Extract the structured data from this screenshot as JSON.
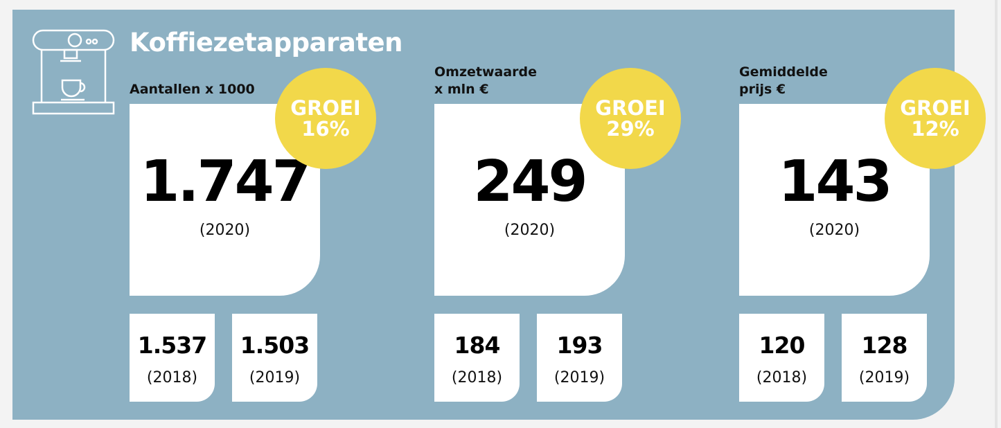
{
  "title": "Koffiezetapparaten",
  "panels": [
    {
      "label": [
        "Aantallen x 1000"
      ],
      "badge": {
        "label": "GROEI",
        "value": "16%"
      },
      "main": {
        "value": "1.747",
        "year": "(2020)"
      },
      "history": [
        {
          "value": "1.537",
          "year": "(2018)"
        },
        {
          "value": "1.503",
          "year": "(2019)"
        }
      ]
    },
    {
      "label": [
        "Omzetwaarde",
        "x mln €"
      ],
      "badge": {
        "label": "GROEI",
        "value": "29%"
      },
      "main": {
        "value": "249",
        "year": "(2020)"
      },
      "history": [
        {
          "value": "184",
          "year": "(2018)"
        },
        {
          "value": "193",
          "year": "(2019)"
        }
      ]
    },
    {
      "label": [
        "Gemiddelde",
        "prijs €"
      ],
      "badge": {
        "label": "GROEI",
        "value": "12%"
      },
      "main": {
        "value": "143",
        "year": "(2020)"
      },
      "history": [
        {
          "value": "120",
          "year": "(2018)"
        },
        {
          "value": "128",
          "year": "(2019)"
        }
      ]
    }
  ]
}
